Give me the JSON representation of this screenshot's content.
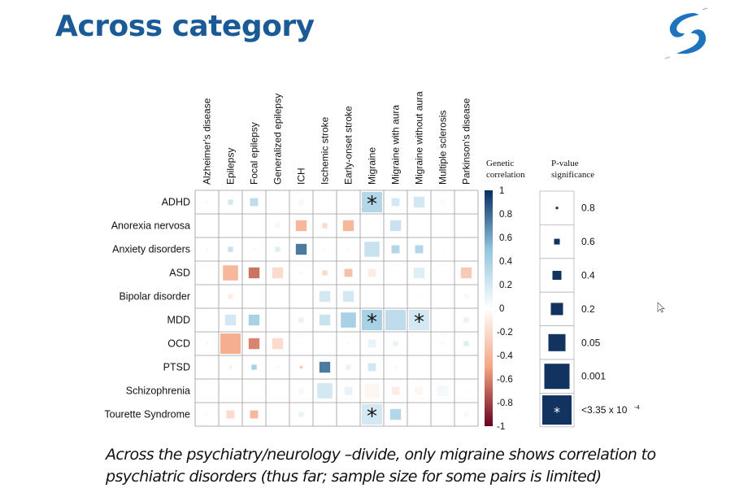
{
  "title": "Across category",
  "caption": {
    "line1": "Across the psychiatry/neurology –divide, only migraine shows correlation to",
    "line2": "psychiatric disorders (thus far; sample size for some pairs is limited)"
  },
  "logo": "brand-logo",
  "chart_data": {
    "type": "heatmap",
    "columns": [
      "Alzheimer's disease",
      "Epilepsy",
      "Focal epilepsy",
      "Generalized epilepsy",
      "ICH",
      "Ischemic stroke",
      "Early-onset stroke",
      "Migraine",
      "Migraine with aura",
      "Migraine without aura",
      "Multiple sclerosis",
      "Parkinson's disease"
    ],
    "rows": [
      "ADHD",
      "Anorexia nervosa",
      "Anxiety disorders",
      "ASD",
      "Bipolar disorder",
      "MDD",
      "OCD",
      "PTSD",
      "Schizophrenia",
      "Tourette Syndrome"
    ],
    "cells_note": "each cell: [genetic correlation, p-value significance level, star]",
    "cells": [
      [
        [
          0.05,
          0.8,
          0
        ],
        [
          0.2,
          0.6,
          0
        ],
        [
          0.3,
          0.4,
          0
        ],
        [
          0.02,
          0.8,
          0
        ],
        [
          0.05,
          0.6,
          0
        ],
        [
          0.01,
          0.8,
          0
        ],
        [
          0.01,
          0.8,
          0
        ],
        [
          0.35,
          0.0001,
          1
        ],
        [
          0.2,
          0.4,
          0
        ],
        [
          0.2,
          0.2,
          0
        ],
        [
          0.03,
          0.6,
          0
        ],
        [
          0,
          0.8,
          0
        ]
      ],
      [
        [
          0,
          0.8,
          0
        ],
        [
          0,
          0.8,
          0
        ],
        [
          0,
          0.8,
          0
        ],
        [
          0.05,
          0.6,
          0
        ],
        [
          -0.4,
          0.2,
          0
        ],
        [
          -0.2,
          0.6,
          0
        ],
        [
          -0.4,
          0.2,
          0
        ],
        [
          0,
          0.8,
          0
        ],
        [
          0.25,
          0.2,
          0
        ],
        [
          0,
          0.8,
          0
        ],
        [
          0,
          0.8,
          0
        ],
        [
          0,
          0.8,
          0
        ]
      ],
      [
        [
          0.05,
          0.8,
          0
        ],
        [
          0.25,
          0.6,
          0
        ],
        [
          0.05,
          0.8,
          0
        ],
        [
          0.15,
          0.6,
          0
        ],
        [
          0.75,
          0.2,
          0
        ],
        [
          0.05,
          0.8,
          0
        ],
        [
          0.05,
          0.8,
          0
        ],
        [
          0.25,
          0.05,
          0
        ],
        [
          0.35,
          0.4,
          0
        ],
        [
          0.35,
          0.4,
          0
        ],
        [
          0.02,
          0.8,
          0
        ],
        [
          0.02,
          0.8,
          0
        ]
      ],
      [
        [
          0.02,
          0.8,
          0
        ],
        [
          -0.4,
          0.05,
          0
        ],
        [
          -0.65,
          0.2,
          0
        ],
        [
          -0.2,
          0.2,
          0
        ],
        [
          0.05,
          0.8,
          0
        ],
        [
          -0.2,
          0.6,
          0
        ],
        [
          -0.35,
          0.4,
          0
        ],
        [
          -0.1,
          0.4,
          0
        ],
        [
          0.02,
          0.8,
          0
        ],
        [
          0.15,
          0.2,
          0
        ],
        [
          0,
          0.8,
          0
        ],
        [
          -0.3,
          0.2,
          0
        ]
      ],
      [
        [
          0,
          0.8,
          0
        ],
        [
          -0.1,
          0.6,
          0
        ],
        [
          0.03,
          0.8,
          0
        ],
        [
          0.02,
          0.8,
          0
        ],
        [
          0,
          0.8,
          0
        ],
        [
          0.2,
          0.2,
          0
        ],
        [
          0.2,
          0.2,
          0
        ],
        [
          0,
          0.8,
          0
        ],
        [
          0,
          0.8,
          0
        ],
        [
          0.03,
          0.8,
          0
        ],
        [
          0,
          0.8,
          0
        ],
        [
          0.05,
          0.6,
          0
        ]
      ],
      [
        [
          0.01,
          0.8,
          0
        ],
        [
          0.2,
          0.2,
          0
        ],
        [
          0.4,
          0.2,
          0
        ],
        [
          0,
          0.8,
          0
        ],
        [
          0.1,
          0.6,
          0
        ],
        [
          0.25,
          0.2,
          0
        ],
        [
          0.4,
          0.05,
          0
        ],
        [
          0.4,
          0.0001,
          1
        ],
        [
          0.3,
          0.001,
          0
        ],
        [
          0.2,
          0.0001,
          1
        ],
        [
          0,
          0.8,
          0
        ],
        [
          0.1,
          0.6,
          0
        ]
      ],
      [
        [
          0.05,
          0.8,
          0
        ],
        [
          -0.45,
          0.001,
          0
        ],
        [
          -0.6,
          0.2,
          0
        ],
        [
          -0.2,
          0.2,
          0
        ],
        [
          0.03,
          0.8,
          0
        ],
        [
          0,
          0.8,
          0
        ],
        [
          0.03,
          0.8,
          0
        ],
        [
          0.1,
          0.4,
          0
        ],
        [
          0.1,
          0.6,
          0
        ],
        [
          0,
          0.8,
          0
        ],
        [
          0.05,
          0.8,
          0
        ],
        [
          0.15,
          0.6,
          0
        ]
      ],
      [
        [
          0.02,
          0.8,
          0
        ],
        [
          0.1,
          0.8,
          0
        ],
        [
          0.4,
          0.6,
          0
        ],
        [
          0.05,
          0.8,
          0
        ],
        [
          -0.3,
          0.8,
          0
        ],
        [
          0.75,
          0.2,
          0
        ],
        [
          0.1,
          0.6,
          0
        ],
        [
          0.2,
          0.4,
          0
        ],
        [
          0.05,
          0.8,
          0
        ],
        [
          0.02,
          0.8,
          0
        ],
        [
          0,
          0.8,
          0
        ],
        [
          0,
          0.8,
          0
        ]
      ],
      [
        [
          0.02,
          0.8,
          0
        ],
        [
          0,
          0.8,
          0
        ],
        [
          0,
          0.8,
          0
        ],
        [
          0.02,
          0.8,
          0
        ],
        [
          0.05,
          0.6,
          0
        ],
        [
          0.2,
          0.05,
          0
        ],
        [
          0.1,
          0.4,
          0
        ],
        [
          -0.05,
          0.05,
          0
        ],
        [
          -0.1,
          0.4,
          0
        ],
        [
          -0.05,
          0.4,
          0
        ],
        [
          0.05,
          0.2,
          0
        ],
        [
          0.02,
          0.6,
          0
        ]
      ],
      [
        [
          0.03,
          0.8,
          0
        ],
        [
          -0.2,
          0.4,
          0
        ],
        [
          -0.4,
          0.4,
          0
        ],
        [
          0,
          0.8,
          0
        ],
        [
          0.1,
          0.6,
          0
        ],
        [
          0,
          0.8,
          0
        ],
        [
          0,
          0.8,
          0
        ],
        [
          0.2,
          0.0001,
          1
        ],
        [
          0.35,
          0.2,
          0
        ],
        [
          0,
          0.8,
          0
        ],
        [
          0,
          0.8,
          0
        ],
        [
          0.05,
          0.6,
          0
        ]
      ]
    ],
    "colorbar": {
      "title_line1": "Genetic",
      "title_line2": "correlation",
      "ticks": [
        "1",
        "0.8",
        "0.6",
        "0.4",
        "0.2",
        "0",
        "-0.2",
        "-0.4",
        "-0.6",
        "-0.8",
        "-1"
      ],
      "range": [
        -1,
        1
      ],
      "colors": {
        "neg": "#67001f",
        "negmid": "#f4a582",
        "zero": "#ffffff",
        "posmid": "#92c5de",
        "pos": "#053061"
      }
    },
    "pvalue_legend": {
      "title_line1": "P-value",
      "title_line2": "significance",
      "labels": [
        "0.8",
        "0.6",
        "0.4",
        "0.2",
        "0.05",
        "0.001",
        "<3.35 x 10"
      ],
      "exponent": "-4",
      "color": "#12325f",
      "star": "*"
    }
  }
}
